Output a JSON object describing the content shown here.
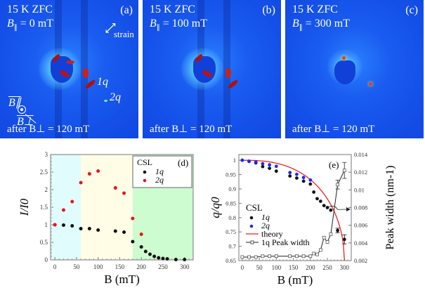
{
  "panels": [
    {
      "id": "a",
      "tag": "(a)",
      "line1": "15 K ZFC",
      "line2_prefix": "B",
      "line2_sub": "∥",
      "line2_value": "= 0 mT",
      "bottom": "after B⊥ = 120 mT",
      "strain_label": "strain",
      "peak1": "1q",
      "peak2": "2q",
      "bpar": "B∥",
      "bperp": "B⊥"
    },
    {
      "id": "b",
      "tag": "(b)",
      "line1": "15 K ZFC",
      "line2_prefix": "B",
      "line2_sub": "∥",
      "line2_value": "= 100 mT",
      "bottom": "after B⊥ = 120 mT"
    },
    {
      "id": "c",
      "tag": "(c)",
      "line1": "15 K ZFC",
      "line2_prefix": "B",
      "line2_sub": "∥",
      "line2_value": "= 300 mT",
      "bottom": "after B⊥ = 120 mT"
    }
  ],
  "colors": {
    "red": "#e8161b",
    "black": "#111111",
    "blue": "#1a2cf2",
    "cyan_region": "#e0fcfc",
    "yellow_region": "#fffde6",
    "green_region": "#ccfcd0",
    "theory": "#ee2222"
  },
  "chart_data": [
    {
      "type": "scatter",
      "panel_tag": "(d)",
      "xlabel": "B (mT)",
      "ylabel": "I/I0",
      "xlim": [
        -10,
        320
      ],
      "ylim": [
        0,
        3
      ],
      "xticks": [
        0,
        50,
        100,
        150,
        200,
        250,
        300
      ],
      "yticks": [
        0,
        0.5,
        1,
        1.5,
        2,
        2.5,
        3
      ],
      "ytick_labels": [
        "0",
        "0.5",
        "1",
        "1.5",
        "2",
        "2.5",
        "3"
      ],
      "regions": [
        {
          "from": -10,
          "to": 60,
          "color": "cyan"
        },
        {
          "from": 60,
          "to": 180,
          "color": "yellow"
        },
        {
          "from": 180,
          "to": 320,
          "color": "green"
        }
      ],
      "legend": {
        "title": "CSL",
        "placement": "top-right",
        "entries": [
          "1q",
          "2q"
        ]
      },
      "series": [
        {
          "name": "1q",
          "color": "black",
          "x": [
            0,
            20,
            40,
            60,
            80,
            100,
            140,
            160,
            180,
            200,
            210,
            220,
            230,
            240,
            250,
            260,
            280,
            300
          ],
          "y": [
            1.0,
            0.99,
            0.97,
            0.89,
            0.89,
            0.85,
            0.82,
            0.79,
            0.52,
            0.37,
            0.24,
            0.16,
            0.1,
            0.06,
            0.04,
            0.03,
            0.01,
            0.01
          ]
        },
        {
          "name": "2q",
          "color": "red",
          "x": [
            0,
            20,
            40,
            60,
            80,
            100,
            140,
            160,
            180,
            200
          ],
          "y": [
            1.0,
            1.42,
            1.66,
            2.2,
            2.45,
            2.53,
            2.05,
            1.9,
            1.18,
            0.73
          ]
        }
      ]
    },
    {
      "type": "scatter",
      "panel_tag": "(e)",
      "xlabel": "B (mT)",
      "ylabel": "q/q0",
      "ylabel_right": "Peak width (nm-1)",
      "xlim": [
        -10,
        320
      ],
      "ylim": [
        0.65,
        1.02
      ],
      "ylim_right": [
        0.002,
        0.014
      ],
      "xticks": [
        0,
        50,
        100,
        150,
        200,
        250,
        300
      ],
      "yticks": [
        0.65,
        0.7,
        0.75,
        0.8,
        0.85,
        0.9,
        0.95,
        1
      ],
      "ytick_labels": [
        "0.65",
        "0.7",
        "0.75",
        "0.8",
        "0.85",
        "0.9",
        "0.95",
        "1"
      ],
      "yticks_right": [
        0.002,
        0.004,
        0.006,
        0.008,
        0.01,
        0.012,
        0.014
      ],
      "ytick_right_labels": [
        "0.002",
        "0.004",
        "0.006",
        "0.008",
        "0.01",
        "0.012",
        "0.014"
      ],
      "legend": {
        "title": "CSL",
        "placement": "center-left",
        "entries": [
          "1q",
          "2q",
          "theory",
          "1q Peak width"
        ]
      },
      "series": [
        {
          "name": "1q",
          "color": "black",
          "x": [
            0,
            20,
            40,
            60,
            80,
            100,
            140,
            160,
            180,
            200,
            210,
            220,
            230,
            240,
            250,
            260,
            280,
            300
          ],
          "y": [
            1.0,
            0.996,
            0.991,
            0.978,
            0.972,
            0.962,
            0.945,
            0.938,
            0.927,
            0.917,
            0.889,
            0.866,
            0.857,
            0.842,
            0.835,
            0.826,
            0.755,
            0.724
          ],
          "yerr": {
            "280": 0.008,
            "300": 0.016
          }
        },
        {
          "name": "2q",
          "color": "blue",
          "x": [
            0,
            20,
            40,
            60,
            80,
            100,
            140,
            160,
            180,
            200
          ],
          "y": [
            1.0,
            0.997,
            0.994,
            0.988,
            0.984,
            0.979,
            0.957,
            0.951,
            0.94,
            0.931
          ]
        },
        {
          "name": "theory",
          "color": "red",
          "type": "line",
          "bc": 300
        },
        {
          "name": "1q Peak width",
          "axis": "right",
          "color": "black",
          "marker": "open-square",
          "x": [
            0,
            20,
            40,
            60,
            80,
            100,
            140,
            160,
            180,
            200,
            210,
            220,
            230,
            240,
            250,
            260,
            280,
            300
          ],
          "y": [
            0.0024,
            0.0024,
            0.0024,
            0.0025,
            0.0025,
            0.0025,
            0.0025,
            0.0025,
            0.0025,
            0.0025,
            0.0028,
            0.0027,
            0.0032,
            0.0046,
            0.0041,
            0.005,
            0.0106,
            0.0122
          ],
          "yerr": {
            "280": 0.0005,
            "300": 0.0009
          }
        }
      ]
    }
  ]
}
